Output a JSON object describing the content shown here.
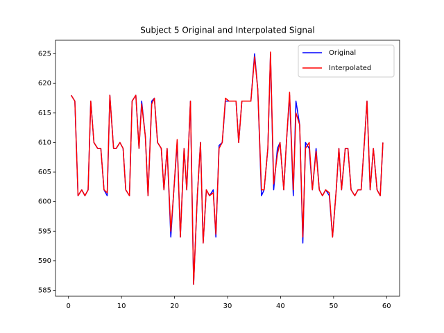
{
  "chart_data": {
    "type": "line",
    "title": "Subject 5 Original and Interpolated Signal",
    "x": [
      0.5,
      1.2,
      1.8,
      2.5,
      3.1,
      3.7,
      4.2,
      4.8,
      5.5,
      6.1,
      6.7,
      7.3,
      7.8,
      8.5,
      9.0,
      9.7,
      10.3,
      10.8,
      11.5,
      12.0,
      12.7,
      13.3,
      13.8,
      14.5,
      15.0,
      15.7,
      16.2,
      16.8,
      17.5,
      18.0,
      18.6,
      19.3,
      19.8,
      20.5,
      21.1,
      21.8,
      22.3,
      23.0,
      23.6,
      24.3,
      24.9,
      25.4,
      26.0,
      26.6,
      27.3,
      27.8,
      28.4,
      29.0,
      29.6,
      30.3,
      30.9,
      31.6,
      32.1,
      32.7,
      33.4,
      33.9,
      34.4,
      35.1,
      35.7,
      36.4,
      36.9,
      37.6,
      38.1,
      38.7,
      39.4,
      39.9,
      40.6,
      41.1,
      41.7,
      42.4,
      42.9,
      43.6,
      44.2,
      44.7,
      45.4,
      46.0,
      46.7,
      47.3,
      47.9,
      48.5,
      49.2,
      49.8,
      50.5,
      51.0,
      51.5,
      52.2,
      52.7,
      53.3,
      54.0,
      54.6,
      55.2,
      55.8,
      56.3,
      56.9,
      57.5,
      58.2,
      58.8,
      59.3
    ],
    "series": [
      {
        "name": "Original",
        "color": "#0000ff",
        "values": [
          618,
          617,
          601,
          602,
          601,
          602,
          617,
          610,
          609,
          609,
          602,
          601,
          618,
          609,
          609,
          610,
          609,
          602,
          601,
          617,
          618,
          609,
          617,
          611,
          601,
          617,
          617.5,
          610,
          609,
          602,
          609,
          594,
          601,
          610,
          594,
          609,
          602,
          617,
          586,
          601,
          610,
          593,
          602,
          601,
          602,
          594,
          609.5,
          610,
          617,
          617,
          617,
          617,
          610,
          617,
          617,
          617,
          617,
          625,
          619,
          601,
          602,
          609,
          625,
          602,
          609,
          610,
          602,
          610,
          618,
          601,
          617,
          613,
          593,
          610,
          609,
          602,
          609,
          602,
          601,
          602,
          601,
          594,
          602,
          609,
          602,
          609,
          609,
          602,
          601,
          602,
          602,
          610,
          617,
          602,
          609,
          602,
          601,
          610
        ]
      },
      {
        "name": "Interpolated",
        "color": "#ff0000",
        "values": [
          618,
          617,
          601,
          602,
          601,
          602,
          617,
          610,
          609,
          609,
          602,
          601.5,
          618,
          609,
          609,
          610,
          609,
          602,
          601,
          617,
          618,
          609,
          616.5,
          611,
          601,
          616.5,
          617.5,
          610,
          609,
          602,
          609,
          595,
          601,
          610.5,
          594,
          609,
          602,
          617,
          586,
          601,
          610,
          593,
          602,
          601,
          601.5,
          594.5,
          609,
          610,
          617.5,
          617,
          617,
          617,
          610,
          617,
          617,
          617,
          617,
          624.5,
          619,
          602,
          602,
          609,
          625.3,
          603,
          608,
          610,
          602,
          610,
          618.5,
          602,
          615,
          613,
          594,
          609,
          610,
          602,
          608.5,
          602,
          601,
          602,
          601.5,
          594,
          602,
          609,
          602,
          609,
          609,
          602,
          601,
          602,
          602,
          610,
          617,
          602,
          609,
          602,
          601,
          610
        ]
      }
    ],
    "xlim": [
      -2.45,
      62.45
    ],
    "ylim": [
      584.0,
      627.3
    ],
    "xticks": [
      0,
      10,
      20,
      30,
      40,
      50,
      60
    ],
    "yticks": [
      585,
      590,
      595,
      600,
      605,
      610,
      615,
      620,
      625
    ],
    "legend": "upper right"
  }
}
